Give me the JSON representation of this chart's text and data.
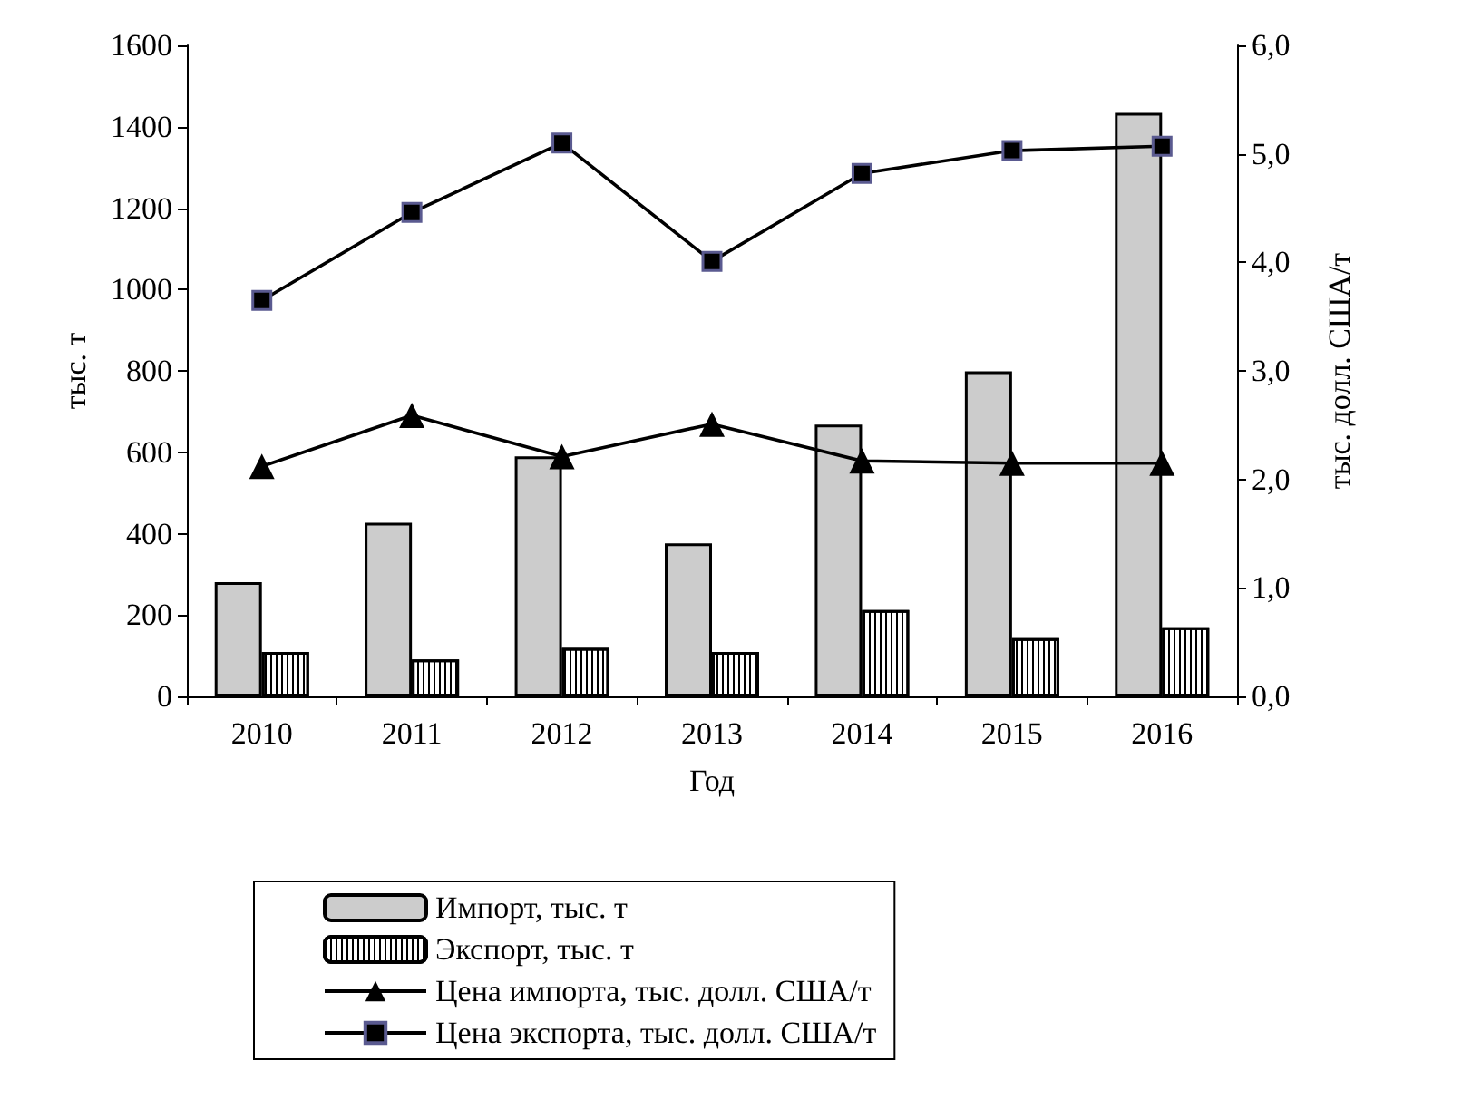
{
  "chart_data": {
    "type": "bar",
    "xlabel": "Год",
    "ylabel": "тыс. т",
    "y2label": "тыс. долл. США/т",
    "categories": [
      "2010",
      "2011",
      "2012",
      "2013",
      "2014",
      "2015",
      "2016"
    ],
    "series": [
      {
        "name": "Импорт, тыс. т",
        "color": "#cccccc",
        "values": [
          281,
          427,
          590,
          376,
          668,
          799,
          1434
        ]
      },
      {
        "name": "Экспорт, тыс. т",
        "color": "#ffffff",
        "values": [
          109,
          91,
          119,
          109,
          212,
          143,
          170
        ]
      },
      {
        "name": "Цена импорта, тыс. долл. США/т",
        "type": "line",
        "axis": "y2",
        "marker": "triangle",
        "color": "#000000",
        "values": [
          2.12,
          2.59,
          2.21,
          2.51,
          2.17,
          2.15,
          2.15
        ]
      },
      {
        "name": "Цена экспорта, тыс. долл. США/т",
        "type": "line",
        "axis": "y2",
        "marker": "square",
        "color": "#000000",
        "values": [
          3.65,
          4.46,
          5.1,
          4.01,
          4.82,
          5.03,
          5.07
        ]
      }
    ],
    "ylim": [
      0,
      1600
    ],
    "yticks": [
      0,
      200,
      400,
      600,
      800,
      1000,
      1200,
      1400,
      1600
    ],
    "y2lim": [
      0,
      6
    ],
    "y2ticks": [
      {
        "value": 0,
        "label": "0,0"
      },
      {
        "value": 1,
        "label": "1,0"
      },
      {
        "value": 2,
        "label": "2,0"
      },
      {
        "value": 3,
        "label": "3,0"
      },
      {
        "value": 4,
        "label": "4,0"
      },
      {
        "value": 5,
        "label": "5,0"
      },
      {
        "value": 6,
        "label": "6,0"
      }
    ],
    "grid": false,
    "legend": "bottom"
  }
}
